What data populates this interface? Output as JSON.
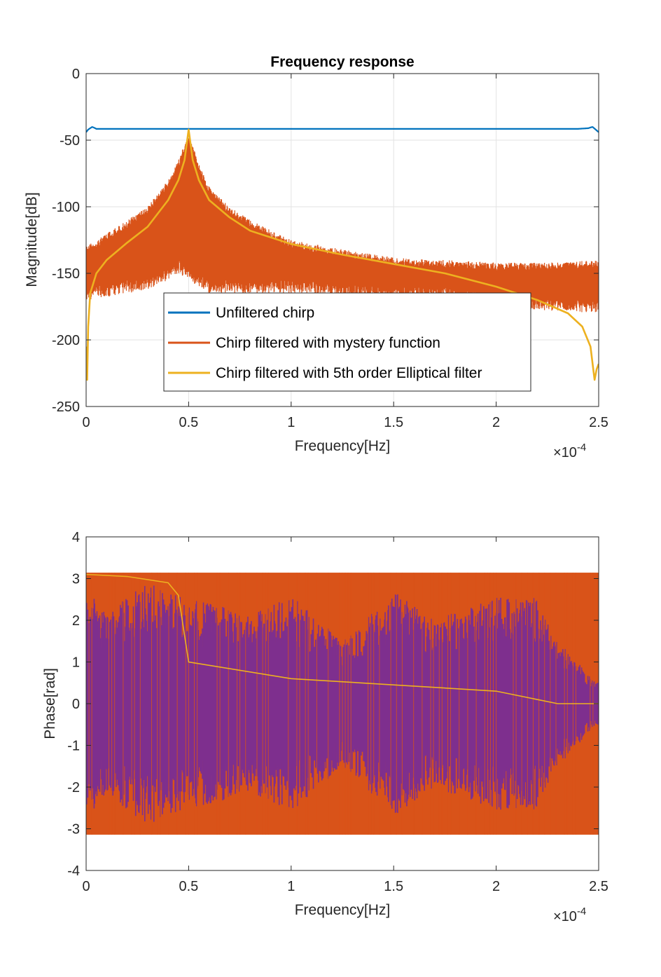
{
  "chart_data": [
    {
      "type": "line",
      "title": "Frequency response",
      "xlabel": "Frequency[Hz]",
      "ylabel": "Magnitude[dB]",
      "x_exponent_label": "×10",
      "x_exponent_power": "-4",
      "xlim": [
        0,
        2.5
      ],
      "ylim": [
        -250,
        0
      ],
      "xticks": [
        "0",
        "0.5",
        "1",
        "1.5",
        "2",
        "2.5"
      ],
      "xtick_values": [
        0,
        0.5,
        1,
        1.5,
        2,
        2.5
      ],
      "yticks": [
        "0",
        "-50",
        "-100",
        "-150",
        "-200",
        "-250"
      ],
      "ytick_values": [
        0,
        -50,
        -100,
        -150,
        -200,
        -250
      ],
      "grid": true,
      "legend_position": "lower center",
      "series": [
        {
          "name": "Unfiltered chirp",
          "color": "#0072BD",
          "x": [
            0,
            0.01,
            0.03,
            0.05,
            0.1,
            0.5,
            1.0,
            1.25,
            1.5,
            2.0,
            2.4,
            2.45,
            2.47,
            2.5
          ],
          "y": [
            -44,
            -42,
            -40,
            -41.5,
            -41.5,
            -41.5,
            -41.5,
            -41.5,
            -41.5,
            -41.5,
            -41.5,
            -41,
            -40,
            -44
          ]
        },
        {
          "name": "Chirp filtered with mystery function",
          "color": "#D95319",
          "x": [
            0,
            0.1,
            0.2,
            0.3,
            0.4,
            0.45,
            0.5,
            0.55,
            0.6,
            0.7,
            0.8,
            1.0,
            1.25,
            1.5,
            1.75,
            2.0,
            2.25,
            2.5
          ],
          "upper": [
            -130,
            -120,
            -110,
            -100,
            -80,
            -65,
            -45,
            -68,
            -85,
            -100,
            -110,
            -125,
            -132,
            -138,
            -140,
            -142,
            -142,
            -140
          ],
          "lower": [
            -170,
            -168,
            -165,
            -162,
            -155,
            -150,
            -155,
            -160,
            -165,
            -165,
            -165,
            -165,
            -168,
            -170,
            -170,
            -175,
            -178,
            -180
          ]
        },
        {
          "name": "Chirp filtered with 5th order Elliptical filter",
          "color": "#EDB120",
          "x": [
            0,
            0.005,
            0.01,
            0.02,
            0.05,
            0.1,
            0.2,
            0.3,
            0.4,
            0.45,
            0.48,
            0.5,
            0.52,
            0.55,
            0.6,
            0.7,
            0.8,
            1.0,
            1.25,
            1.5,
            1.75,
            2.0,
            2.2,
            2.35,
            2.42,
            2.46,
            2.48,
            2.49,
            2.5
          ],
          "y": [
            -205,
            -230,
            -190,
            -165,
            -150,
            -140,
            -127,
            -115,
            -95,
            -80,
            -65,
            -42,
            -65,
            -80,
            -95,
            -108,
            -118,
            -128,
            -136,
            -143,
            -150,
            -160,
            -170,
            -180,
            -190,
            -205,
            -230,
            -222,
            -218
          ]
        }
      ]
    },
    {
      "type": "line",
      "title": "",
      "xlabel": "Frequency[Hz]",
      "ylabel": "Phase[rad]",
      "x_exponent_label": "×10",
      "x_exponent_power": "-4",
      "xlim": [
        0,
        2.5
      ],
      "ylim": [
        -4,
        4
      ],
      "xticks": [
        "0",
        "0.5",
        "1",
        "1.5",
        "2",
        "2.5"
      ],
      "xtick_values": [
        0,
        0.5,
        1,
        1.5,
        2,
        2.5
      ],
      "yticks": [
        "4",
        "3",
        "2",
        "1",
        "0",
        "-1",
        "-2",
        "-3",
        "-4"
      ],
      "ytick_values": [
        4,
        3,
        2,
        1,
        0,
        -1,
        -2,
        -3,
        -4
      ],
      "grid": false,
      "series": [
        {
          "color": "#D95319",
          "x": [
            0,
            2.5
          ],
          "upper": [
            3.14159,
            3.14159
          ],
          "lower": [
            -3.14159,
            -3.14159
          ]
        },
        {
          "color": "#7E2F8E",
          "x": [
            0,
            0.1,
            0.3,
            0.5,
            0.8,
            1.0,
            1.25,
            1.5,
            1.7,
            2.0,
            2.2,
            2.3,
            2.5
          ],
          "upper": [
            2.8,
            2.2,
            2.9,
            2.5,
            2.2,
            2.6,
            1.5,
            2.7,
            2.0,
            2.6,
            2.6,
            1.5,
            0.5
          ],
          "lower": [
            -2.8,
            -2.2,
            -2.9,
            -2.5,
            -2.2,
            -2.6,
            -1.5,
            -2.7,
            -2.0,
            -2.6,
            -2.6,
            -1.5,
            -0.5
          ]
        },
        {
          "color": "#EDB120",
          "x": [
            0,
            0.2,
            0.4,
            0.45,
            0.5,
            1.0,
            2.0,
            2.3,
            2.5
          ],
          "y": [
            3.1,
            3.05,
            2.9,
            2.6,
            1.0,
            0.6,
            0.3,
            0.0,
            0.0
          ]
        }
      ]
    }
  ]
}
